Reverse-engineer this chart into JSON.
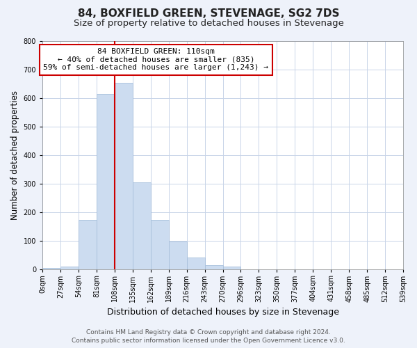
{
  "title": "84, BOXFIELD GREEN, STEVENAGE, SG2 7DS",
  "subtitle": "Size of property relative to detached houses in Stevenage",
  "xlabel": "Distribution of detached houses by size in Stevenage",
  "ylabel": "Number of detached properties",
  "bin_edges": [
    0,
    27,
    54,
    81,
    108,
    135,
    162,
    189,
    216,
    243,
    270,
    297,
    324,
    351,
    378,
    405,
    432,
    459,
    486,
    513,
    540
  ],
  "bar_heights": [
    5,
    10,
    175,
    615,
    655,
    305,
    175,
    98,
    42,
    15,
    10,
    2,
    0,
    2,
    0,
    0,
    0,
    0,
    0,
    0
  ],
  "tick_labels": [
    "0sqm",
    "27sqm",
    "54sqm",
    "81sqm",
    "108sqm",
    "135sqm",
    "162sqm",
    "189sqm",
    "216sqm",
    "243sqm",
    "270sqm",
    "296sqm",
    "323sqm",
    "350sqm",
    "377sqm",
    "404sqm",
    "431sqm",
    "458sqm",
    "485sqm",
    "512sqm",
    "539sqm"
  ],
  "bar_color": "#ccdcf0",
  "bar_edge_color": "#a8c0dc",
  "property_line_x": 108,
  "property_line_color": "#cc0000",
  "annotation_line1": "84 BOXFIELD GREEN: 110sqm",
  "annotation_line2": "← 40% of detached houses are smaller (835)",
  "annotation_line3": "59% of semi-detached houses are larger (1,243) →",
  "annotation_box_color": "#ffffff",
  "annotation_box_edge": "#cc0000",
  "ylim": [
    0,
    800
  ],
  "yticks": [
    0,
    100,
    200,
    300,
    400,
    500,
    600,
    700,
    800
  ],
  "footer_line1": "Contains HM Land Registry data © Crown copyright and database right 2024.",
  "footer_line2": "Contains public sector information licensed under the Open Government Licence v3.0.",
  "bg_color": "#eef2fa",
  "plot_bg_color": "#ffffff",
  "title_fontsize": 11,
  "subtitle_fontsize": 9.5,
  "ylabel_fontsize": 8.5,
  "xlabel_fontsize": 9,
  "tick_fontsize": 7,
  "annotation_fontsize": 8,
  "footer_fontsize": 6.5
}
